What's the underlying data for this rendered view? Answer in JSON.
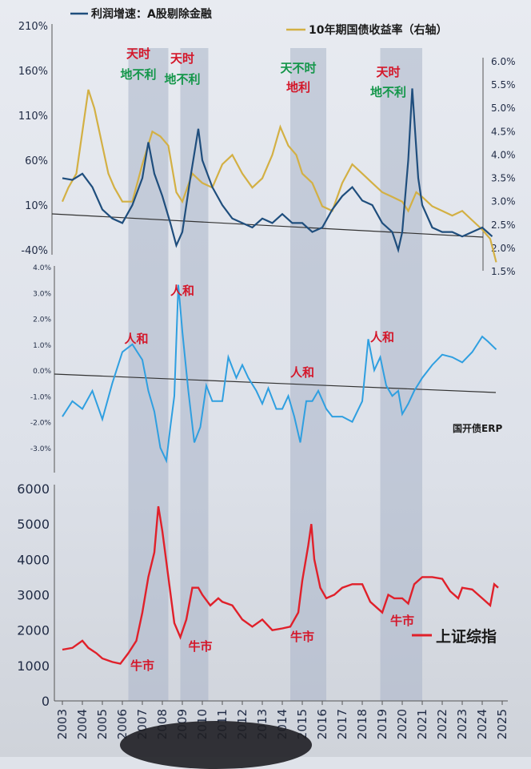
{
  "chart_data": [
    {
      "type": "line",
      "panel": "top",
      "legend": [
        {
          "label": "利润增速：A股剔除金融",
          "color": "#1f4e7d"
        },
        {
          "label": "10年期国债收益率（右轴）",
          "color": "#d3b044"
        }
      ],
      "y_left_ticks": [
        "210%",
        "160%",
        "110%",
        "60%",
        "10%",
        "-40%"
      ],
      "y_right_ticks": [
        "6.0%",
        "5.5%",
        "5.0%",
        "4.5%",
        "4.0%",
        "3.5%",
        "3.0%",
        "2.5%",
        "2.0%",
        "1.5%"
      ],
      "ylim_left": [
        -40,
        210
      ],
      "ylim_right": [
        1.5,
        6.0
      ],
      "series": [
        {
          "name": "利润增速：A股剔除金融",
          "axis": "left",
          "color": "#1f4e7d",
          "x": [
            2003.0,
            2003.5,
            2004.0,
            2004.5,
            2005.0,
            2005.5,
            2006.0,
            2006.5,
            2007.0,
            2007.3,
            2007.6,
            2008.0,
            2008.4,
            2008.7,
            2009.0,
            2009.4,
            2009.8,
            2010.0,
            2010.5,
            2011.0,
            2011.5,
            2012.0,
            2012.5,
            2013.0,
            2013.5,
            2014.0,
            2014.5,
            2015.0,
            2015.5,
            2016.0,
            2016.5,
            2017.0,
            2017.5,
            2018.0,
            2018.5,
            2019.0,
            2019.5,
            2019.8,
            2020.0,
            2020.3,
            2020.5,
            2020.8,
            2021.0,
            2021.5,
            2022.0,
            2022.5,
            2023.0,
            2023.5,
            2024.0,
            2024.5
          ],
          "values": [
            40,
            38,
            45,
            30,
            5,
            -5,
            -10,
            10,
            40,
            80,
            45,
            20,
            -10,
            -35,
            -20,
            40,
            95,
            60,
            30,
            10,
            -5,
            -10,
            -15,
            -5,
            -10,
            0,
            -10,
            -10,
            -20,
            -15,
            5,
            20,
            30,
            15,
            10,
            -10,
            -20,
            -40,
            -20,
            60,
            140,
            40,
            10,
            -15,
            -20,
            -20,
            -25,
            -20,
            -15,
            -25
          ]
        },
        {
          "name": "10年期国债收益率（右轴）",
          "axis": "right",
          "color": "#d3b044",
          "x": [
            2003.0,
            2003.3,
            2003.7,
            2004.0,
            2004.3,
            2004.6,
            2005.0,
            2005.3,
            2005.6,
            2006.0,
            2006.5,
            2007.0,
            2007.5,
            2007.9,
            2008.3,
            2008.7,
            2009.0,
            2009.5,
            2010.0,
            2010.5,
            2011.0,
            2011.5,
            2012.0,
            2012.5,
            2013.0,
            2013.5,
            2013.9,
            2014.3,
            2014.7,
            2015.0,
            2015.5,
            2016.0,
            2016.5,
            2017.0,
            2017.5,
            2018.0,
            2018.5,
            2019.0,
            2019.5,
            2020.0,
            2020.3,
            2020.7,
            2021.0,
            2021.5,
            2022.0,
            2022.5,
            2023.0,
            2023.5,
            2024.0,
            2024.4,
            2024.7
          ],
          "values": [
            3.0,
            3.3,
            3.6,
            4.5,
            5.4,
            5.0,
            4.2,
            3.6,
            3.3,
            3.0,
            3.0,
            3.8,
            4.5,
            4.4,
            4.2,
            3.2,
            3.0,
            3.6,
            3.4,
            3.3,
            3.8,
            4.0,
            3.6,
            3.3,
            3.5,
            4.0,
            4.6,
            4.2,
            4.0,
            3.6,
            3.4,
            2.9,
            2.8,
            3.4,
            3.8,
            3.6,
            3.4,
            3.2,
            3.1,
            3.0,
            2.8,
            3.2,
            3.1,
            2.9,
            2.8,
            2.7,
            2.8,
            2.6,
            2.4,
            2.2,
            1.7
          ]
        }
      ],
      "annotations": [
        {
          "x": 2006.8,
          "lines": [
            {
              "text": "天时",
              "color": "red"
            },
            {
              "text": "地不利",
              "color": "green"
            }
          ]
        },
        {
          "x": 2009.0,
          "lines": [
            {
              "text": "天时",
              "color": "red"
            },
            {
              "text": "地不利",
              "color": "green"
            }
          ]
        },
        {
          "x": 2014.8,
          "lines": [
            {
              "text": "天不时",
              "color": "green"
            },
            {
              "text": "地利",
              "color": "red"
            }
          ]
        },
        {
          "x": 2019.3,
          "lines": [
            {
              "text": "天时",
              "color": "red"
            },
            {
              "text": "地不利",
              "color": "green"
            }
          ]
        }
      ]
    },
    {
      "type": "line",
      "panel": "middle",
      "y_ticks": [
        "4.0%",
        "3.0%",
        "2.0%",
        "1.0%",
        "0.0%",
        "-1.0%",
        "-2.0%",
        "-3.0%"
      ],
      "ylim": [
        -3.5,
        4.0
      ],
      "series": [
        {
          "name": "国开债ERP",
          "color": "#2f9fe0",
          "x": [
            2003.0,
            2003.5,
            2004.0,
            2004.5,
            2005.0,
            2005.5,
            2006.0,
            2006.5,
            2007.0,
            2007.3,
            2007.6,
            2007.9,
            2008.2,
            2008.4,
            2008.6,
            2008.8,
            2009.0,
            2009.3,
            2009.6,
            2009.9,
            2010.2,
            2010.5,
            2011.0,
            2011.3,
            2011.7,
            2012.0,
            2012.3,
            2012.7,
            2013.0,
            2013.3,
            2013.7,
            2014.0,
            2014.3,
            2014.6,
            2014.9,
            2015.2,
            2015.5,
            2015.8,
            2016.2,
            2016.5,
            2017.0,
            2017.5,
            2018.0,
            2018.3,
            2018.6,
            2018.9,
            2019.2,
            2019.5,
            2019.8,
            2020.0,
            2020.3,
            2020.6,
            2021.0,
            2021.5,
            2022.0,
            2022.5,
            2023.0,
            2023.5,
            2024.0,
            2024.3,
            2024.7
          ],
          "values": [
            -1.8,
            -1.2,
            -1.5,
            -0.8,
            -1.9,
            -0.5,
            0.7,
            1.0,
            0.4,
            -0.8,
            -1.6,
            -3.0,
            -3.5,
            -2.2,
            -1.0,
            3.3,
            1.5,
            -0.8,
            -2.8,
            -2.2,
            -0.6,
            -1.2,
            -1.2,
            0.5,
            -0.3,
            0.2,
            -0.3,
            -0.8,
            -1.3,
            -0.7,
            -1.5,
            -1.5,
            -1.0,
            -1.8,
            -2.8,
            -1.2,
            -1.2,
            -0.8,
            -1.5,
            -1.8,
            -1.8,
            -2.0,
            -1.2,
            1.2,
            0.0,
            0.5,
            -0.6,
            -1.0,
            -0.8,
            -1.7,
            -1.3,
            -0.8,
            -0.3,
            0.2,
            0.6,
            0.5,
            0.3,
            0.7,
            1.3,
            1.1,
            0.8
          ]
        }
      ],
      "annotations": [
        {
          "x": 2006.7,
          "text": "人和"
        },
        {
          "x": 2009.0,
          "text": "人和"
        },
        {
          "x": 2015.0,
          "text": "人和"
        },
        {
          "x": 2019.0,
          "text": "人和"
        }
      ]
    },
    {
      "type": "line",
      "panel": "bottom",
      "y_ticks": [
        6000,
        5000,
        4000,
        3000,
        2000,
        1000,
        0
      ],
      "ylim": [
        0,
        6000
      ],
      "x_ticks": [
        "2003",
        "2004",
        "2005",
        "2006",
        "2007",
        "2008",
        "2009",
        "2010",
        "2011",
        "2012",
        "2013",
        "2014",
        "2015",
        "2016",
        "2017",
        "2018",
        "2019",
        "2020",
        "2021",
        "2022",
        "2023",
        "2024",
        "2025"
      ],
      "series": [
        {
          "name": "上证综指",
          "color": "#e0202a",
          "x": [
            2003.0,
            2003.5,
            2004.0,
            2004.3,
            2004.7,
            2005.0,
            2005.5,
            2005.9,
            2006.3,
            2006.7,
            2007.0,
            2007.3,
            2007.6,
            2007.8,
            2008.0,
            2008.3,
            2008.6,
            2008.9,
            2009.2,
            2009.5,
            2009.8,
            2010.0,
            2010.4,
            2010.8,
            2011.0,
            2011.5,
            2012.0,
            2012.5,
            2013.0,
            2013.5,
            2014.0,
            2014.4,
            2014.8,
            2015.0,
            2015.3,
            2015.45,
            2015.6,
            2015.9,
            2016.2,
            2016.6,
            2017.0,
            2017.5,
            2018.0,
            2018.4,
            2018.8,
            2019.0,
            2019.3,
            2019.6,
            2020.0,
            2020.3,
            2020.6,
            2021.0,
            2021.5,
            2022.0,
            2022.4,
            2022.8,
            2023.0,
            2023.5,
            2024.0,
            2024.4,
            2024.6,
            2024.8
          ],
          "values": [
            1450,
            1500,
            1700,
            1500,
            1350,
            1200,
            1100,
            1050,
            1350,
            1700,
            2500,
            3500,
            4200,
            5500,
            4800,
            3500,
            2200,
            1800,
            2300,
            3200,
            3200,
            3000,
            2700,
            2900,
            2800,
            2700,
            2300,
            2100,
            2300,
            2000,
            2050,
            2100,
            2500,
            3400,
            4400,
            5000,
            4000,
            3200,
            2900,
            3000,
            3200,
            3300,
            3300,
            2800,
            2600,
            2500,
            3000,
            2900,
            2900,
            2750,
            3300,
            3500,
            3500,
            3450,
            3100,
            2900,
            3200,
            3150,
            2900,
            2700,
            3300,
            3200
          ]
        }
      ],
      "annotations": [
        {
          "x": 2006.8,
          "text": "牛市"
        },
        {
          "x": 2009.5,
          "text": "牛市"
        },
        {
          "x": 2015.0,
          "text": "牛市"
        },
        {
          "x": 2019.5,
          "text": "牛市"
        }
      ]
    }
  ],
  "shaded_periods": [
    [
      2006.3,
      2008.3
    ],
    [
      2008.9,
      2010.3
    ],
    [
      2014.4,
      2016.2
    ],
    [
      2018.9,
      2021.0
    ]
  ],
  "colors": {
    "profit": "#1f4e7d",
    "bond": "#d3b044",
    "erp": "#2f9fe0",
    "index": "#e0202a",
    "shade": "#a9b4c8",
    "ann_red": "#d4172a",
    "ann_green": "#14964a"
  }
}
